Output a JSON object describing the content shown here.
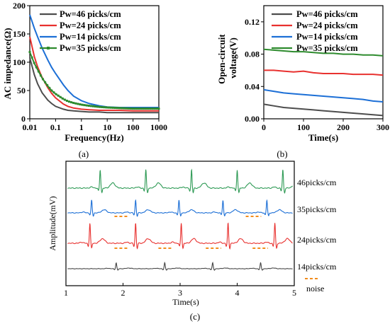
{
  "chart_data": [
    {
      "id": "a",
      "type": "line",
      "panel_label": "(a)",
      "xlabel": "Frequency(Hz)",
      "ylabel": "AC impedance(Ω)",
      "xscale": "log",
      "xlim": [
        0.01,
        1000
      ],
      "ylim": [
        0,
        200
      ],
      "xticks": [
        "0.01",
        "0.1",
        "1",
        "10",
        "100",
        "1000"
      ],
      "yticks": [
        "0",
        "50",
        "100",
        "150",
        "200"
      ],
      "grid": false,
      "legend_position": "top-right",
      "series": [
        {
          "name": "Pw=46 picks/cm",
          "color": "#4d4d4d",
          "x": [
            0.01,
            0.015,
            0.02,
            0.03,
            0.05,
            0.07,
            0.1,
            0.2,
            0.3,
            0.5,
            1,
            2,
            5,
            10,
            30,
            100,
            300,
            1000
          ],
          "y": [
            108,
            78,
            62,
            46,
            33,
            27,
            22,
            17,
            15,
            14,
            13,
            12,
            12,
            11,
            11,
            11,
            11,
            11
          ]
        },
        {
          "name": "Pw=24 picks/cm",
          "color": "#e8312f",
          "x": [
            0.01,
            0.015,
            0.02,
            0.03,
            0.05,
            0.07,
            0.1,
            0.2,
            0.3,
            0.5,
            1,
            2,
            5,
            10,
            30,
            100,
            300,
            1000
          ],
          "y": [
            145,
            110,
            92,
            73,
            55,
            45,
            37,
            26,
            22,
            19,
            17,
            16,
            15,
            15,
            15,
            14,
            14,
            14
          ]
        },
        {
          "name": "Pw=14 picks/cm",
          "color": "#1c6fd6",
          "x": [
            0.01,
            0.015,
            0.02,
            0.03,
            0.05,
            0.07,
            0.1,
            0.2,
            0.3,
            0.5,
            1,
            2,
            5,
            10,
            30,
            100,
            300,
            1000
          ],
          "y": [
            184,
            160,
            145,
            125,
            104,
            91,
            80,
            60,
            50,
            40,
            32,
            27,
            23,
            21,
            20,
            20,
            20,
            20
          ]
        },
        {
          "name": "Pw=35 picks/cm",
          "color": "#2e8b2e",
          "x": [
            0.01,
            0.015,
            0.02,
            0.03,
            0.05,
            0.07,
            0.1,
            0.2,
            0.3,
            0.5,
            1,
            2,
            5,
            10,
            30,
            100,
            300,
            1000
          ],
          "y": [
            118,
            98,
            87,
            72,
            58,
            50,
            44,
            35,
            31,
            28,
            25,
            23,
            21,
            20,
            19,
            18,
            18,
            18
          ]
        }
      ]
    },
    {
      "id": "b",
      "type": "line",
      "panel_label": "(b)",
      "xlabel": "Time(s)",
      "ylabel": "Open-circuit voltage(V)",
      "xlim": [
        0,
        300
      ],
      "ylim": [
        0,
        0.14
      ],
      "xticks": [
        "0",
        "100",
        "200",
        "300"
      ],
      "yticks": [
        "0.00",
        "0.04",
        "0.08",
        "0.12"
      ],
      "grid": false,
      "legend_position": "top-right",
      "series": [
        {
          "name": "Pw=46 picks/cm",
          "color": "#4d4d4d",
          "x": [
            0,
            25,
            50,
            75,
            100,
            125,
            150,
            175,
            200,
            225,
            250,
            275,
            300
          ],
          "y": [
            0.018,
            0.016,
            0.014,
            0.013,
            0.012,
            0.011,
            0.01,
            0.009,
            0.008,
            0.007,
            0.006,
            0.005,
            0.004
          ]
        },
        {
          "name": "Pw=24 picks/cm",
          "color": "#e8312f",
          "x": [
            0,
            25,
            50,
            75,
            100,
            125,
            150,
            175,
            200,
            225,
            250,
            275,
            300
          ],
          "y": [
            0.06,
            0.06,
            0.059,
            0.058,
            0.059,
            0.057,
            0.056,
            0.056,
            0.056,
            0.055,
            0.055,
            0.055,
            0.054
          ]
        },
        {
          "name": "Pw=14 picks/cm",
          "color": "#1c6fd6",
          "x": [
            0,
            25,
            50,
            75,
            100,
            125,
            150,
            175,
            200,
            225,
            250,
            275,
            300
          ],
          "y": [
            0.036,
            0.034,
            0.032,
            0.031,
            0.03,
            0.029,
            0.028,
            0.027,
            0.026,
            0.025,
            0.024,
            0.022,
            0.021
          ]
        },
        {
          "name": "Pw=35 picks/cm",
          "color": "#2e8b2e",
          "x": [
            0,
            25,
            50,
            75,
            100,
            125,
            150,
            175,
            200,
            225,
            250,
            275,
            300
          ],
          "y": [
            0.086,
            0.085,
            0.084,
            0.083,
            0.083,
            0.082,
            0.081,
            0.081,
            0.08,
            0.08,
            0.079,
            0.079,
            0.078
          ]
        }
      ]
    },
    {
      "id": "c",
      "type": "line",
      "panel_label": "(c)",
      "xlabel": "Time(s)",
      "ylabel": "Amplitude(mV)",
      "xlim": [
        1,
        5
      ],
      "xticks": [
        "1",
        "2",
        "3",
        "4",
        "5"
      ],
      "grid": false,
      "noise_label": "noise",
      "noise_color": "#f28c1c",
      "traces": [
        {
          "name": "46picks/cm",
          "color": "#2e9a55",
          "beats": [
            1.6,
            2.4,
            3.2,
            4.0,
            4.8
          ],
          "amplitude": 1.0,
          "t_wave": 0.28,
          "noise": []
        },
        {
          "name": "35picks/cm",
          "color": "#1c6fd6",
          "beats": [
            1.45,
            2.22,
            2.98,
            3.75,
            4.52
          ],
          "amplitude": 0.9,
          "t_wave": 0.22,
          "noise": [
            [
              1.85,
              2.08
            ],
            [
              4.15,
              4.42
            ]
          ]
        },
        {
          "name": "24picks/cm",
          "color": "#e8312f",
          "beats": [
            1.42,
            2.22,
            3.02,
            3.84,
            4.66
          ],
          "amplitude": 1.1,
          "t_wave": 0.25,
          "noise": [
            [
              1.85,
              2.1
            ],
            [
              2.62,
              2.88
            ],
            [
              3.45,
              3.72
            ],
            [
              4.27,
              4.54
            ]
          ]
        },
        {
          "name": "14picks/cm",
          "color": "#444444",
          "beats": [
            1.88,
            2.73,
            3.57,
            4.41
          ],
          "amplitude": 0.7,
          "t_wave": 0.08,
          "noise": []
        }
      ]
    }
  ]
}
